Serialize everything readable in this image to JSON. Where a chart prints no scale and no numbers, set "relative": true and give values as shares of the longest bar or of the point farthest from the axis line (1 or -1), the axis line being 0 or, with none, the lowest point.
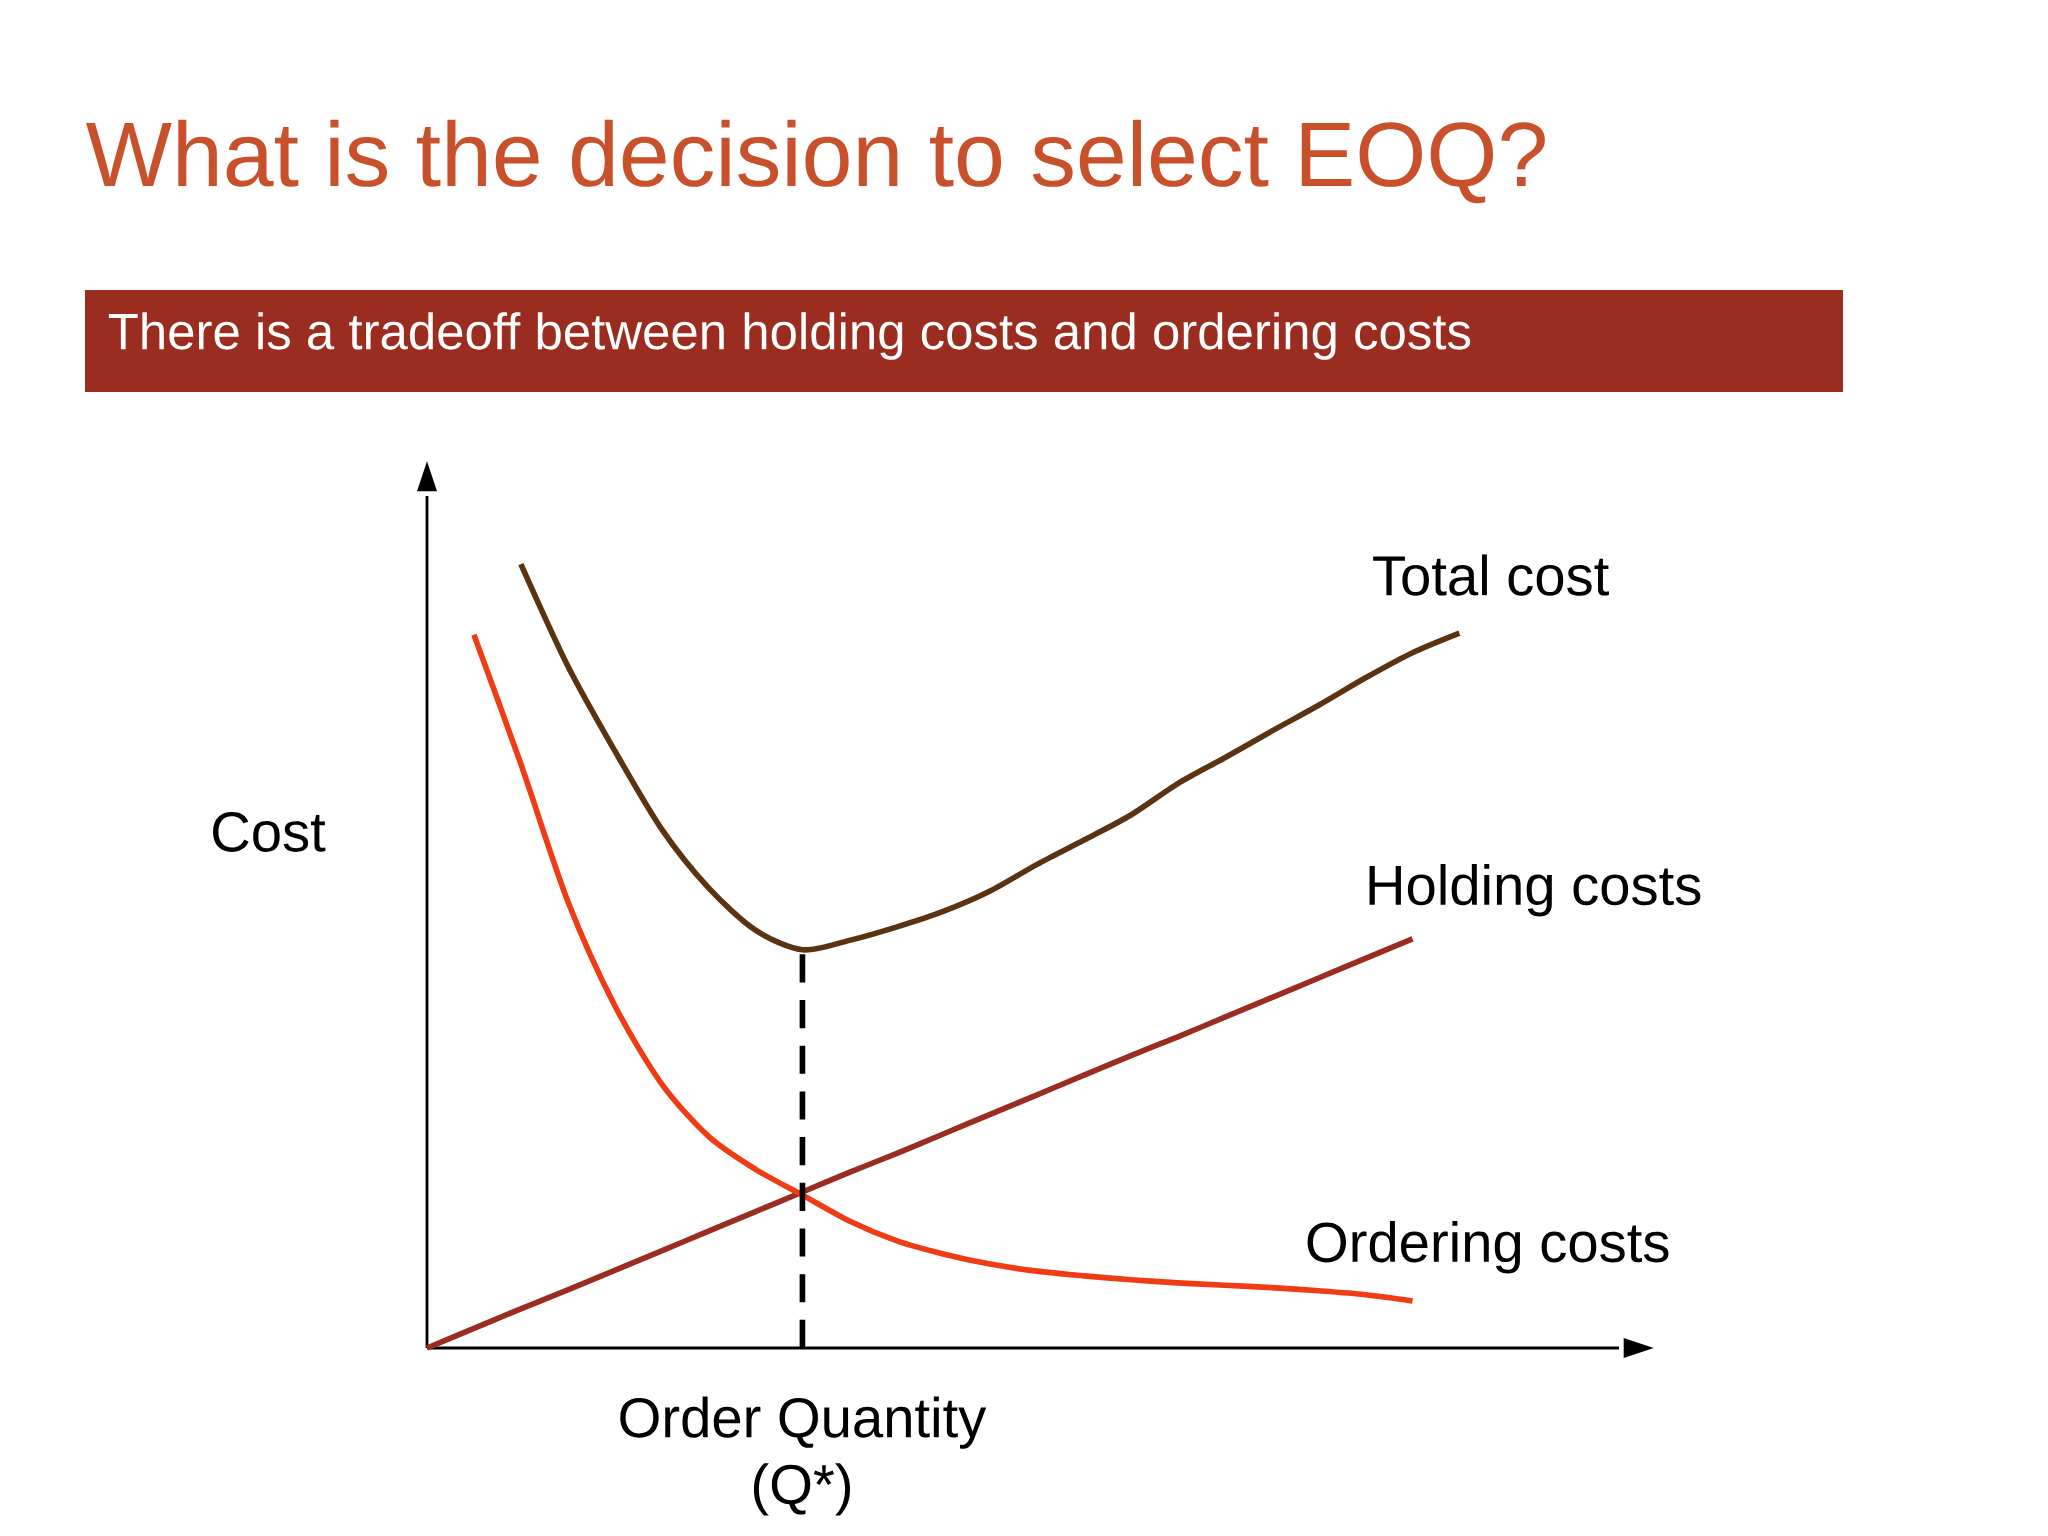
{
  "chart_data": {
    "type": "line",
    "title": "What is the decision to select EOQ?",
    "subtitle": "There is a tradeoff between holding costs and ordering costs",
    "xlabel": "Order Quantity (Q*)",
    "ylabel": "Cost",
    "relative": true,
    "legend": false,
    "line_style": "solid",
    "categories": [
      null,
      null,
      null,
      null,
      null,
      null,
      null,
      null,
      null,
      null,
      null,
      null,
      null,
      null,
      null,
      null,
      null,
      null,
      null,
      null,
      null,
      null,
      null
    ],
    "series": [
      {
        "name": "Total cost",
        "color": "#5c3310",
        "values": [
          null,
          null,
          1.0,
          0.87,
          0.762,
          0.662,
          0.587,
          0.533,
          0.508,
          0.52,
          0.537,
          0.557,
          0.583,
          0.617,
          0.648,
          0.68,
          0.72,
          0.753,
          0.787,
          0.82,
          0.855,
          0.887,
          0.912
        ]
      },
      {
        "name": "Holding costs",
        "color": "#9b2d20",
        "values": [
          0,
          0.025,
          0.05,
          0.074,
          0.099,
          0.124,
          0.149,
          0.174,
          0.199,
          0.224,
          0.248,
          0.273,
          0.298,
          0.323,
          0.348,
          0.373,
          0.397,
          0.422,
          0.447,
          0.472,
          0.497,
          0.522,
          null
        ]
      },
      {
        "name": "Ordering costs",
        "color": "#f03c14",
        "values": [
          null,
          0.91,
          0.745,
          0.57,
          0.437,
          0.337,
          0.27,
          0.228,
          0.195,
          0.162,
          0.137,
          0.12,
          0.107,
          0.098,
          0.092,
          0.087,
          0.083,
          0.08,
          0.077,
          0.073,
          0.068,
          0.06,
          null
        ]
      }
    ]
  }
}
